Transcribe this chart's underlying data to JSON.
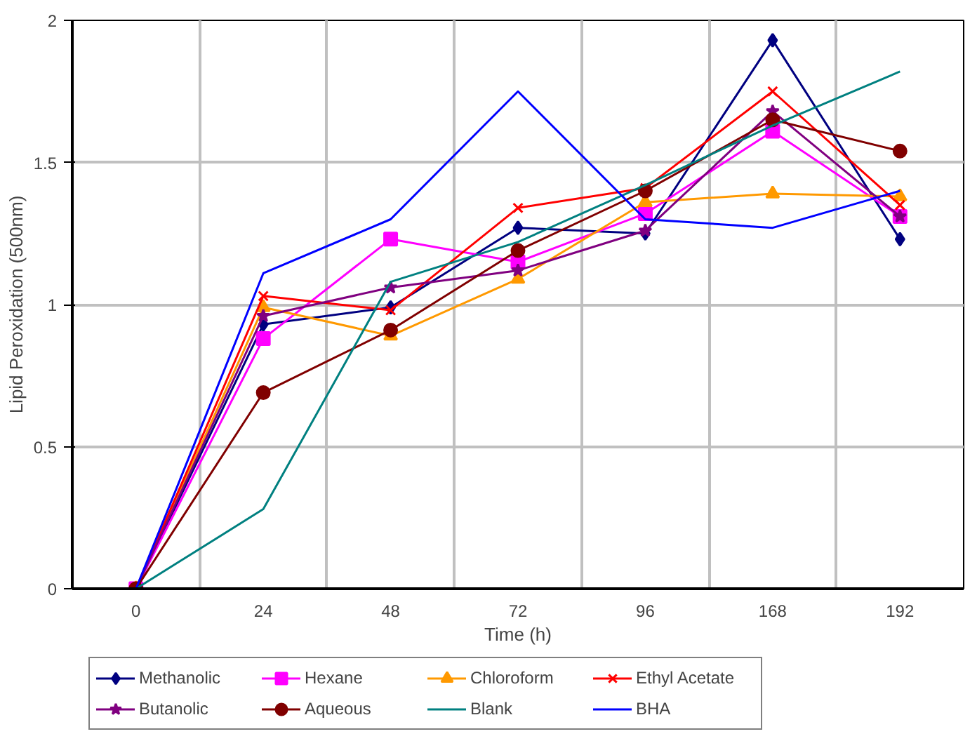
{
  "chart_data": {
    "type": "line",
    "xlabel": "Time (h)",
    "ylabel": "Lipid Peroxidation (500nm)",
    "categories": [
      "0",
      "24",
      "48",
      "72",
      "96",
      "168",
      "192"
    ],
    "ylim": [
      0,
      2
    ],
    "yticks": [
      0,
      0.5,
      1,
      1.5,
      2
    ],
    "grid": true,
    "legend": "bottom",
    "series": [
      {
        "name": "Methanolic",
        "color": "#000080",
        "marker": "diamond",
        "values": [
          0,
          0.93,
          0.99,
          1.27,
          1.25,
          1.93,
          1.23
        ]
      },
      {
        "name": "Hexane",
        "color": "#ff00ff",
        "marker": "square",
        "values": [
          0,
          0.88,
          1.23,
          1.15,
          1.32,
          1.61,
          1.31
        ]
      },
      {
        "name": "Chloroform",
        "color": "#ff9900",
        "marker": "triangle",
        "values": [
          0,
          0.99,
          0.89,
          1.09,
          1.36,
          1.39,
          1.38
        ]
      },
      {
        "name": "Ethyl Acetate",
        "color": "#ff0000",
        "marker": "cross",
        "values": [
          0,
          1.03,
          0.98,
          1.34,
          1.41,
          1.75,
          1.35
        ]
      },
      {
        "name": "Butanolic",
        "color": "#800080",
        "marker": "star",
        "values": [
          0,
          0.96,
          1.06,
          1.12,
          1.26,
          1.68,
          1.31
        ]
      },
      {
        "name": "Aqueous",
        "color": "#800000",
        "marker": "circle",
        "values": [
          0,
          0.69,
          0.91,
          1.19,
          1.4,
          1.65,
          1.54
        ]
      },
      {
        "name": "Blank",
        "color": "#008080",
        "marker": "none",
        "values": [
          0,
          0.28,
          1.08,
          1.22,
          1.42,
          1.63,
          1.82
        ]
      },
      {
        "name": "BHA",
        "color": "#0000ff",
        "marker": "none",
        "values": [
          0,
          1.11,
          1.3,
          1.75,
          1.3,
          1.27,
          1.4
        ]
      }
    ]
  }
}
